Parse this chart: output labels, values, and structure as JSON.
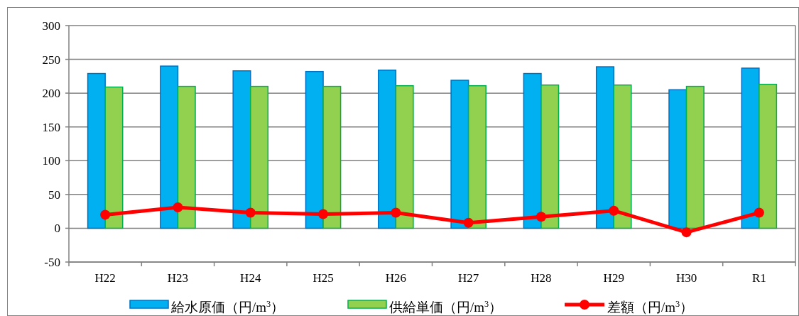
{
  "chart_data": {
    "type": "bar",
    "categories": [
      "H22",
      "H23",
      "H24",
      "H25",
      "H26",
      "H27",
      "H28",
      "H29",
      "H30",
      "R1"
    ],
    "series": [
      {
        "name": "給水原価（円/m$^{3}$）",
        "color": "#00b0f0",
        "values": [
          229,
          240,
          233,
          232,
          234,
          219,
          229,
          239,
          205,
          237
        ]
      },
      {
        "name": "供給単価（円/m$^{3}$）",
        "color": "#92d050",
        "values": [
          209,
          210,
          210,
          210,
          211,
          211,
          212,
          212,
          210,
          213
        ]
      },
      {
        "name": "差額（円/m$^{3}$）",
        "type": "line",
        "color": "#ff0000",
        "marker": "circle",
        "values": [
          20,
          31,
          23,
          21,
          23,
          8,
          17,
          26,
          -6,
          23
        ]
      }
    ],
    "ylim": [
      -50,
      300
    ],
    "yticks": [
      -50,
      0,
      50,
      100,
      150,
      200,
      250,
      300
    ],
    "grid": "y",
    "legend": "bottom"
  }
}
